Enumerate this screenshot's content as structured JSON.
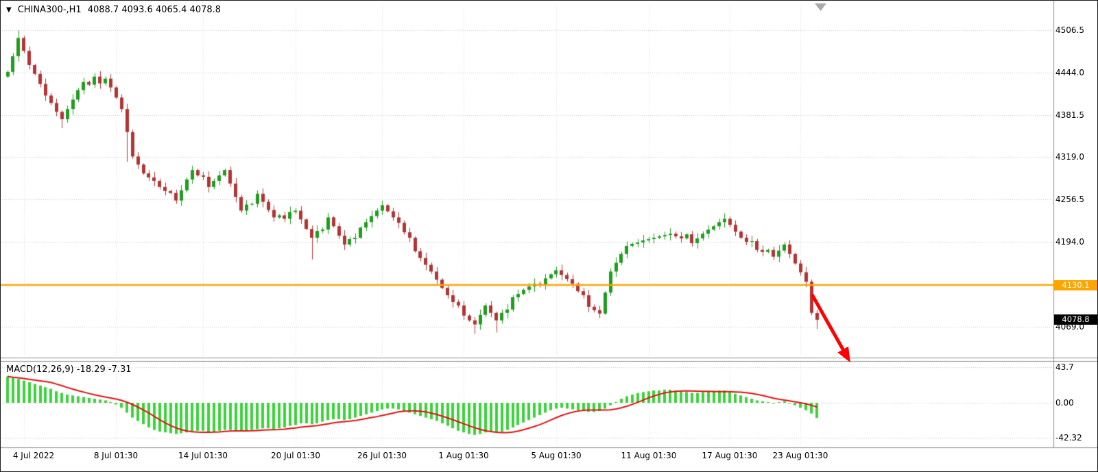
{
  "header": {
    "arrow_glyph": "▼",
    "symbol_period": "CHINA300-,H1",
    "ohlc_text": "4088.7 4093.6 4065.4 4078.8"
  },
  "macd_panel_label": "MACD(12,26,9) -18.29 -7.31",
  "price_panel_meta": {
    "level_label": "4130.1",
    "current_label": "4078.8"
  },
  "colors": {
    "bull": "#1f9d1f",
    "bear": "#b23434",
    "hist": "#3bd33b",
    "signal": "#e01010",
    "level_line": "#ffa500",
    "grid": "#c4c4c4",
    "vgrid": "#dedede",
    "frame": "#8f8f8f",
    "arrow": "#ff0000",
    "shift_marker": "#aaaaaa"
  },
  "chart_data": {
    "type": "candlestick",
    "title": "CHINA300-,H1",
    "timeframe": "H1",
    "current_ohlc": {
      "open": 4088.7,
      "high": 4093.6,
      "low": 4065.4,
      "close": 4078.8
    },
    "x_ticks": [
      {
        "index": 3,
        "label": "4 Jul 2022"
      },
      {
        "index": 20,
        "label": "8 Jul 01:30"
      },
      {
        "index": 36,
        "label": "14 Jul 01:30"
      },
      {
        "index": 53,
        "label": "20 Jul 01:30"
      },
      {
        "index": 69,
        "label": "26 Jul 01:30"
      },
      {
        "index": 84,
        "label": "1 Aug 01:30"
      },
      {
        "index": 101,
        "label": "5 Aug 01:30"
      },
      {
        "index": 118,
        "label": "11 Aug 01:30"
      },
      {
        "index": 133,
        "label": "17 Aug 01:30"
      },
      {
        "index": 146,
        "label": "23 Aug 01:30"
      }
    ],
    "price_panel": {
      "ylim": [
        4025,
        4544
      ],
      "grid_values": [
        4506.5,
        4444.0,
        4381.5,
        4319.0,
        4256.5,
        4194.0,
        4131.5,
        4069.0
      ],
      "axis_labels": [
        {
          "v": 4506.5,
          "t": "4506.5"
        },
        {
          "v": 4444.0,
          "t": "4444.0"
        },
        {
          "v": 4381.5,
          "t": "4381.5"
        },
        {
          "v": 4319.0,
          "t": "4319.0"
        },
        {
          "v": 4256.5,
          "t": "4256.5"
        },
        {
          "v": 4194.0,
          "t": "4194.0"
        },
        {
          "v": 4069.0,
          "t": "4069.0"
        }
      ],
      "level_line": {
        "value": 4130.1
      },
      "current_price": 4078.8,
      "first_open": 4438,
      "closes": [
        4445,
        4468,
        4495,
        4476,
        4455,
        4442,
        4427,
        4410,
        4399,
        4386,
        4375,
        4390,
        4404,
        4418,
        4430,
        4426,
        4438,
        4428,
        4435,
        4422,
        4407,
        4390,
        4356,
        4320,
        4308,
        4295,
        4289,
        4284,
        4275,
        4269,
        4266,
        4255,
        4270,
        4286,
        4300,
        4292,
        4290,
        4275,
        4284,
        4292,
        4300,
        4280,
        4260,
        4240,
        4249,
        4250,
        4265,
        4253,
        4241,
        4230,
        4233,
        4228,
        4238,
        4240,
        4227,
        4213,
        4200,
        4210,
        4212,
        4230,
        4217,
        4203,
        4190,
        4198,
        4200,
        4215,
        4223,
        4232,
        4240,
        4248,
        4239,
        4230,
        4222,
        4208,
        4200,
        4180,
        4170,
        4160,
        4150,
        4138,
        4126,
        4115,
        4105,
        4100,
        4085,
        4078,
        4072,
        4086,
        4100,
        4089,
        4078,
        4089,
        4094,
        4112,
        4117,
        4123,
        4128,
        4132,
        4130,
        4140,
        4146,
        4152,
        4145,
        4139,
        4132,
        4121,
        4115,
        4098,
        4093,
        4088,
        4119,
        4150,
        4163,
        4176,
        4188,
        4191,
        4193,
        4196,
        4198,
        4200,
        4202,
        4204,
        4206,
        4202,
        4199,
        4205,
        4192,
        4199,
        4206,
        4212,
        4217,
        4223,
        4228,
        4219,
        4209,
        4200,
        4194,
        4195,
        4182,
        4179,
        4182,
        4172,
        4181,
        4190,
        4176,
        4162,
        4149,
        4135,
        4089,
        4078.8
      ],
      "candle_overrides": {
        "2": {
          "h": 4506.5
        },
        "10": {
          "l": 4362
        },
        "22": {
          "l": 4312
        },
        "56": {
          "l": 4168
        },
        "86": {
          "l": 4058
        },
        "90": {
          "l": 4060
        },
        "149": {
          "o": 4088.7,
          "h": 4093.6,
          "l": 4065.4,
          "c": 4078.8
        }
      }
    },
    "macd_panel": {
      "label": "MACD(12,26,9)",
      "macd": -18.29,
      "signal": -7.31,
      "signal_period": 9,
      "ylim": [
        -52.5,
        50
      ],
      "axis_labels": [
        {
          "v": 43.7,
          "t": "43.7"
        },
        {
          "v": 0,
          "t": "0.00"
        },
        {
          "v": -42.32,
          "t": "-42.32"
        }
      ],
      "histogram": [
        32,
        30,
        29,
        27,
        25,
        23,
        21,
        19,
        17,
        14,
        12,
        10,
        9,
        8,
        7,
        6,
        5,
        4,
        3,
        1,
        -2,
        -6,
        -12,
        -18,
        -22,
        -26,
        -30,
        -33,
        -35,
        -36,
        -37,
        -38,
        -37,
        -36,
        -35,
        -34,
        -34,
        -35,
        -35,
        -34,
        -33,
        -33,
        -34,
        -35,
        -34,
        -33,
        -32,
        -31,
        -31,
        -32,
        -31,
        -30,
        -28,
        -27,
        -25,
        -25,
        -26,
        -25,
        -23,
        -21,
        -20,
        -20,
        -21,
        -20,
        -18,
        -16,
        -14,
        -12,
        -10,
        -8,
        -7,
        -7,
        -8,
        -10,
        -12,
        -14,
        -16,
        -18,
        -20,
        -22,
        -25,
        -28,
        -31,
        -34,
        -36,
        -38,
        -39,
        -38,
        -36,
        -35,
        -36,
        -35,
        -33,
        -30,
        -27,
        -24,
        -21,
        -18,
        -15,
        -12,
        -9,
        -7,
        -6,
        -7,
        -8,
        -9,
        -10,
        -11,
        -11,
        -10,
        -7,
        -3,
        1,
        5,
        8,
        10,
        12,
        13,
        14,
        15,
        15,
        16,
        16,
        15,
        14,
        13,
        12,
        12,
        13,
        14,
        14,
        15,
        15,
        13,
        11,
        9,
        7,
        5,
        3,
        2,
        1,
        0,
        1,
        2,
        0,
        -3,
        -6,
        -9,
        -13,
        -18.3
      ]
    },
    "annotations": {
      "red_arrow": {
        "from": [
          1183,
          429
        ],
        "to": [
          1236,
          523
        ]
      }
    }
  }
}
